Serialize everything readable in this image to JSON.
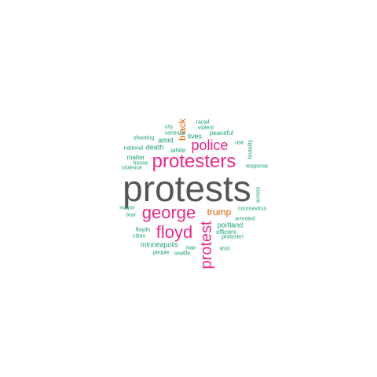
{
  "word_cloud": {
    "colors": {
      "dark_gray": "#555555",
      "magenta": "#e7298a",
      "orange": "#d95f02",
      "teal": "#1b9e77"
    },
    "words": [
      {
        "text": "protests",
        "color": "#555555"
      },
      {
        "text": "protesters",
        "color": "#e7298a"
      },
      {
        "text": "george",
        "color": "#e7298a"
      },
      {
        "text": "floyd",
        "color": "#e7298a"
      },
      {
        "text": "protest",
        "color": "#e7298a"
      },
      {
        "text": "police",
        "color": "#e7298a"
      },
      {
        "text": "trump",
        "color": "#d95f02"
      },
      {
        "text": "black",
        "color": "#d95f02"
      },
      {
        "text": "minneapolis",
        "color": "#1b9e77"
      },
      {
        "text": "portland",
        "color": "#1b9e77"
      },
      {
        "text": "lives",
        "color": "#1b9e77"
      },
      {
        "text": "amid",
        "color": "#1b9e77"
      },
      {
        "text": "death",
        "color": "#1b9e77"
      },
      {
        "text": "white",
        "color": "#1b9e77"
      },
      {
        "text": "matter",
        "color": "#1b9e77"
      },
      {
        "text": "peaceful",
        "color": "#1b9e77"
      },
      {
        "text": "officers",
        "color": "#1b9e77"
      },
      {
        "text": "man",
        "color": "#1b9e77"
      },
      {
        "text": "floyds",
        "color": "#1b9e77"
      },
      {
        "text": "violence",
        "color": "#1b9e77"
      },
      {
        "text": "house",
        "color": "#1b9e77"
      },
      {
        "text": "shooting",
        "color": "#1b9e77"
      },
      {
        "text": "continue",
        "color": "#1b9e77"
      },
      {
        "text": "city",
        "color": "#1b9e77"
      },
      {
        "text": "racial",
        "color": "#1b9e77"
      },
      {
        "text": "violent",
        "color": "#1b9e77"
      },
      {
        "text": "national",
        "color": "#1b9e77"
      },
      {
        "text": "use",
        "color": "#1b9e77"
      },
      {
        "text": "brutality",
        "color": "#1b9e77"
      },
      {
        "text": "response",
        "color": "#1b9e77"
      },
      {
        "text": "across",
        "color": "#1b9e77"
      },
      {
        "text": "coronavirus",
        "color": "#1b9e77"
      },
      {
        "text": "arrested",
        "color": "#1b9e77"
      },
      {
        "text": "protester",
        "color": "#1b9e77"
      },
      {
        "text": "shot",
        "color": "#1b9e77"
      },
      {
        "text": "mayor",
        "color": "#1b9e77"
      },
      {
        "text": "tear",
        "color": "#1b9e77"
      },
      {
        "text": "cities",
        "color": "#1b9e77"
      },
      {
        "text": "people",
        "color": "#1b9e77"
      },
      {
        "text": "seattle",
        "color": "#1b9e77"
      }
    ]
  }
}
